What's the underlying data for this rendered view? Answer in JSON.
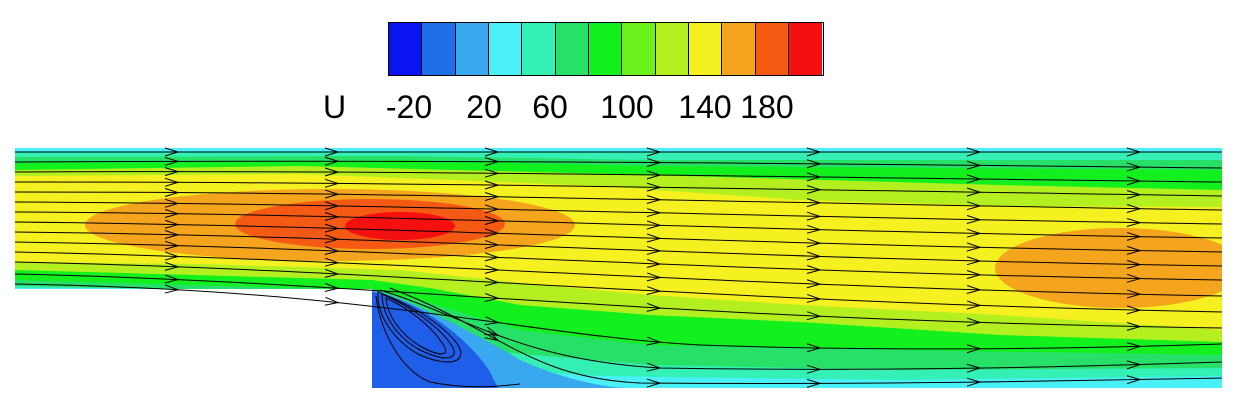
{
  "legend": {
    "variable": "U",
    "ticks": [
      "-20",
      "20",
      "60",
      "100",
      "140",
      "180"
    ],
    "colors": [
      "#0a14f0",
      "#1f6fe8",
      "#3aa8ee",
      "#49f0f5",
      "#34f0b4",
      "#27e068",
      "#12f01e",
      "#6af01a",
      "#b4f020",
      "#f5f020",
      "#f5a41e",
      "#f55a14",
      "#f51010"
    ]
  },
  "flow_field": {
    "colormap": {
      "very_low": "#1f5ee8",
      "low": "#3aa8ee",
      "cyan": "#49f0f5",
      "aqua": "#34f0b4",
      "green": "#27e068",
      "bright_green": "#12f01e",
      "yellow_green": "#b4f020",
      "yellow": "#f5f020",
      "orange": "#f5a41e",
      "red_orange": "#f55a14",
      "red": "#f51010"
    },
    "streamline_color": "#000000"
  }
}
